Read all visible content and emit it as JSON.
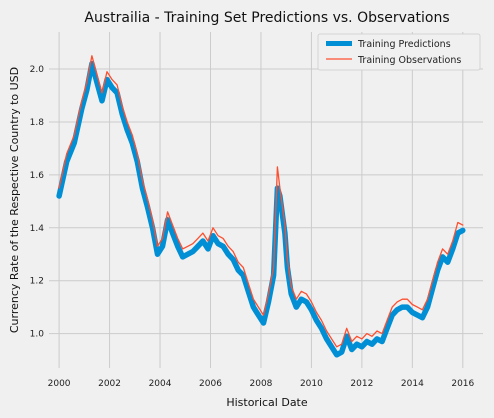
{
  "chart_data": {
    "type": "line",
    "title": "Austrailia - Training Set Predictions vs. Observations",
    "xlabel": "Historical Date",
    "ylabel": "Currency Rate of the Respective Country to USD",
    "xlim": [
      1999.6,
      2016.8
    ],
    "ylim": [
      0.87,
      2.14
    ],
    "xticks": [
      2000,
      2002,
      2004,
      2006,
      2008,
      2010,
      2012,
      2014,
      2016
    ],
    "xtick_labels": [
      "2000",
      "2002",
      "2004",
      "2006",
      "2008",
      "2010",
      "2012",
      "2014",
      "2016"
    ],
    "yticks": [
      1.0,
      1.2,
      1.4,
      1.6,
      1.8,
      2.0
    ],
    "ytick_labels": [
      "1.0",
      "1.2",
      "1.4",
      "1.6",
      "1.8",
      "2.0"
    ],
    "grid": true,
    "legend_position": "top-right",
    "colors": {
      "predictions": "#008fd5",
      "observations": "#fc4f30"
    },
    "series": [
      {
        "name": "Training Predictions",
        "x": [
          2000.0,
          2000.3,
          2000.6,
          2000.9,
          2001.1,
          2001.3,
          2001.5,
          2001.7,
          2001.9,
          2002.1,
          2002.3,
          2002.5,
          2002.7,
          2002.9,
          2003.1,
          2003.3,
          2003.5,
          2003.7,
          2003.9,
          2004.1,
          2004.3,
          2004.5,
          2004.7,
          2004.9,
          2005.1,
          2005.3,
          2005.5,
          2005.7,
          2005.9,
          2006.1,
          2006.3,
          2006.5,
          2006.7,
          2006.9,
          2007.1,
          2007.3,
          2007.5,
          2007.7,
          2007.9,
          2008.1,
          2008.3,
          2008.5,
          2008.65,
          2008.75,
          2008.85,
          2008.95,
          2009.05,
          2009.2,
          2009.4,
          2009.6,
          2009.8,
          2010.0,
          2010.2,
          2010.4,
          2010.6,
          2010.8,
          2011.0,
          2011.2,
          2011.4,
          2011.6,
          2011.8,
          2012.0,
          2012.2,
          2012.4,
          2012.6,
          2012.8,
          2013.0,
          2013.2,
          2013.4,
          2013.6,
          2013.8,
          2014.0,
          2014.2,
          2014.4,
          2014.6,
          2014.8,
          2015.0,
          2015.2,
          2015.4,
          2015.6,
          2015.8,
          2016.0
        ],
        "y": [
          1.52,
          1.65,
          1.72,
          1.85,
          1.92,
          2.02,
          1.95,
          1.88,
          1.96,
          1.93,
          1.91,
          1.83,
          1.77,
          1.72,
          1.65,
          1.55,
          1.48,
          1.4,
          1.3,
          1.33,
          1.43,
          1.38,
          1.33,
          1.29,
          1.3,
          1.31,
          1.33,
          1.35,
          1.32,
          1.37,
          1.34,
          1.33,
          1.3,
          1.28,
          1.24,
          1.22,
          1.16,
          1.1,
          1.07,
          1.04,
          1.12,
          1.22,
          1.55,
          1.52,
          1.45,
          1.38,
          1.25,
          1.15,
          1.1,
          1.13,
          1.12,
          1.09,
          1.05,
          1.02,
          0.98,
          0.95,
          0.92,
          0.93,
          0.99,
          0.94,
          0.96,
          0.95,
          0.97,
          0.96,
          0.98,
          0.97,
          1.02,
          1.07,
          1.09,
          1.1,
          1.1,
          1.08,
          1.07,
          1.06,
          1.1,
          1.17,
          1.24,
          1.29,
          1.27,
          1.32,
          1.38,
          1.39
        ]
      },
      {
        "name": "Training Observations",
        "x": [
          2000.0,
          2000.3,
          2000.6,
          2000.9,
          2001.1,
          2001.3,
          2001.5,
          2001.7,
          2001.9,
          2002.1,
          2002.3,
          2002.5,
          2002.7,
          2002.9,
          2003.1,
          2003.3,
          2003.5,
          2003.7,
          2003.9,
          2004.1,
          2004.3,
          2004.5,
          2004.7,
          2004.9,
          2005.1,
          2005.3,
          2005.5,
          2005.7,
          2005.9,
          2006.1,
          2006.3,
          2006.5,
          2006.7,
          2006.9,
          2007.1,
          2007.3,
          2007.5,
          2007.7,
          2007.9,
          2008.1,
          2008.3,
          2008.5,
          2008.65,
          2008.75,
          2008.85,
          2008.95,
          2009.05,
          2009.2,
          2009.4,
          2009.6,
          2009.8,
          2010.0,
          2010.2,
          2010.4,
          2010.6,
          2010.8,
          2011.0,
          2011.2,
          2011.4,
          2011.6,
          2011.8,
          2012.0,
          2012.2,
          2012.4,
          2012.6,
          2012.8,
          2013.0,
          2013.2,
          2013.4,
          2013.6,
          2013.8,
          2014.0,
          2014.2,
          2014.4,
          2014.6,
          2014.8,
          2015.0,
          2015.2,
          2015.4,
          2015.6,
          2015.8,
          2016.0
        ],
        "y": [
          1.55,
          1.68,
          1.75,
          1.88,
          1.95,
          2.05,
          1.98,
          1.91,
          1.99,
          1.96,
          1.94,
          1.86,
          1.8,
          1.75,
          1.68,
          1.58,
          1.51,
          1.43,
          1.33,
          1.36,
          1.46,
          1.41,
          1.36,
          1.32,
          1.33,
          1.34,
          1.36,
          1.38,
          1.35,
          1.4,
          1.37,
          1.36,
          1.33,
          1.31,
          1.27,
          1.25,
          1.19,
          1.13,
          1.1,
          1.07,
          1.15,
          1.25,
          1.63,
          1.55,
          1.48,
          1.41,
          1.28,
          1.18,
          1.13,
          1.16,
          1.15,
          1.12,
          1.08,
          1.05,
          1.01,
          0.98,
          0.95,
          0.96,
          1.02,
          0.97,
          0.99,
          0.98,
          1.0,
          0.99,
          1.01,
          1.0,
          1.05,
          1.1,
          1.12,
          1.13,
          1.13,
          1.11,
          1.1,
          1.09,
          1.13,
          1.2,
          1.27,
          1.32,
          1.3,
          1.35,
          1.42,
          1.41
        ]
      }
    ]
  }
}
